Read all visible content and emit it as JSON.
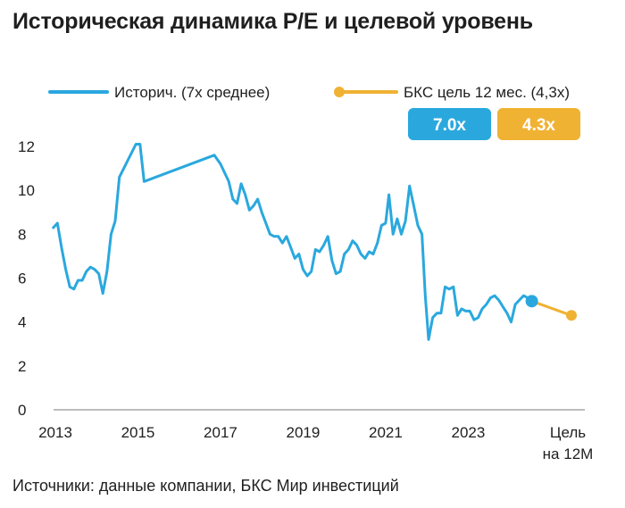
{
  "title": "Историческая динамика P/E и целевой уровень",
  "source": "Источники: данные компании, БКС Мир инвестиций",
  "colors": {
    "history": "#2aa8de",
    "target": "#f0b233",
    "axis": "#bdbdbd",
    "text": "#1f1f1f"
  },
  "chart_data": {
    "type": "line",
    "title": "Историческая динамика P/E и целевой уровень",
    "xlabel": "",
    "ylabel": "",
    "ylim": [
      0,
      12
    ],
    "yticks": [
      0,
      2,
      4,
      6,
      8,
      10,
      12
    ],
    "x_ticks": [
      "2013",
      "2015",
      "2017",
      "2019",
      "2021",
      "2023",
      "Цель на 12М"
    ],
    "grid": false,
    "legend_position": "top",
    "legend": [
      "Историч. (7х среднее)",
      "БКС цель 12 мес. (4,3х)"
    ],
    "badges": [
      "7.0x",
      "4.3x"
    ],
    "series": [
      {
        "name": "Историч. (7х среднее)",
        "color": "#2aa8de",
        "points": [
          [
            2012.95,
            8.3
          ],
          [
            2013.05,
            8.5
          ],
          [
            2013.15,
            7.4
          ],
          [
            2013.25,
            6.4
          ],
          [
            2013.35,
            5.6
          ],
          [
            2013.45,
            5.5
          ],
          [
            2013.55,
            5.9
          ],
          [
            2013.65,
            5.9
          ],
          [
            2013.75,
            6.3
          ],
          [
            2013.85,
            6.5
          ],
          [
            2013.95,
            6.4
          ],
          [
            2014.05,
            6.2
          ],
          [
            2014.15,
            5.3
          ],
          [
            2014.25,
            6.3
          ],
          [
            2014.35,
            8.0
          ],
          [
            2014.45,
            8.6
          ],
          [
            2014.55,
            10.6
          ],
          [
            2014.95,
            12.1
          ],
          [
            2015.05,
            12.1
          ],
          [
            2015.15,
            10.4
          ],
          [
            2016.85,
            11.6
          ],
          [
            2017.0,
            11.2
          ],
          [
            2017.1,
            10.8
          ],
          [
            2017.2,
            10.4
          ],
          [
            2017.3,
            9.6
          ],
          [
            2017.4,
            9.4
          ],
          [
            2017.5,
            10.3
          ],
          [
            2017.6,
            9.8
          ],
          [
            2017.7,
            9.1
          ],
          [
            2017.8,
            9.3
          ],
          [
            2017.9,
            9.6
          ],
          [
            2018.0,
            9.0
          ],
          [
            2018.1,
            8.5
          ],
          [
            2018.2,
            8.0
          ],
          [
            2018.3,
            7.9
          ],
          [
            2018.4,
            7.9
          ],
          [
            2018.5,
            7.6
          ],
          [
            2018.6,
            7.9
          ],
          [
            2018.7,
            7.4
          ],
          [
            2018.8,
            6.9
          ],
          [
            2018.9,
            7.1
          ],
          [
            2019.0,
            6.4
          ],
          [
            2019.1,
            6.1
          ],
          [
            2019.2,
            6.3
          ],
          [
            2019.3,
            7.3
          ],
          [
            2019.4,
            7.2
          ],
          [
            2019.5,
            7.5
          ],
          [
            2019.6,
            7.9
          ],
          [
            2019.7,
            6.8
          ],
          [
            2019.8,
            6.2
          ],
          [
            2019.9,
            6.3
          ],
          [
            2020.0,
            7.1
          ],
          [
            2020.1,
            7.3
          ],
          [
            2020.2,
            7.7
          ],
          [
            2020.3,
            7.5
          ],
          [
            2020.4,
            7.1
          ],
          [
            2020.5,
            6.9
          ],
          [
            2020.6,
            7.2
          ],
          [
            2020.7,
            7.1
          ],
          [
            2020.8,
            7.6
          ],
          [
            2020.9,
            8.4
          ],
          [
            2021.0,
            8.5
          ],
          [
            2021.08,
            9.8
          ],
          [
            2021.18,
            8.0
          ],
          [
            2021.28,
            8.7
          ],
          [
            2021.38,
            8.0
          ],
          [
            2021.48,
            8.6
          ],
          [
            2021.58,
            10.2
          ],
          [
            2021.68,
            9.3
          ],
          [
            2021.78,
            8.4
          ],
          [
            2021.88,
            8.0
          ],
          [
            2021.96,
            5.2
          ],
          [
            2022.04,
            3.2
          ],
          [
            2022.14,
            4.2
          ],
          [
            2022.24,
            4.4
          ],
          [
            2022.34,
            4.4
          ],
          [
            2022.44,
            5.6
          ],
          [
            2022.54,
            5.5
          ],
          [
            2022.64,
            5.6
          ],
          [
            2022.74,
            4.3
          ],
          [
            2022.84,
            4.6
          ],
          [
            2022.94,
            4.5
          ],
          [
            2023.04,
            4.5
          ],
          [
            2023.14,
            4.1
          ],
          [
            2023.24,
            4.2
          ],
          [
            2023.34,
            4.6
          ],
          [
            2023.44,
            4.8
          ],
          [
            2023.54,
            5.1
          ],
          [
            2023.64,
            5.2
          ],
          [
            2023.74,
            5.0
          ],
          [
            2023.84,
            4.7
          ],
          [
            2023.94,
            4.4
          ],
          [
            2024.04,
            4.0
          ],
          [
            2024.14,
            4.8
          ],
          [
            2024.24,
            5.0
          ],
          [
            2024.34,
            5.2
          ],
          [
            2024.44,
            5.1
          ],
          [
            2024.54,
            4.95
          ]
        ]
      },
      {
        "name": "БКС цель 12 мес. (4,3х)",
        "color": "#f0b233",
        "points": [
          [
            2024.54,
            4.95
          ],
          [
            2025.5,
            4.3
          ]
        ]
      }
    ]
  }
}
